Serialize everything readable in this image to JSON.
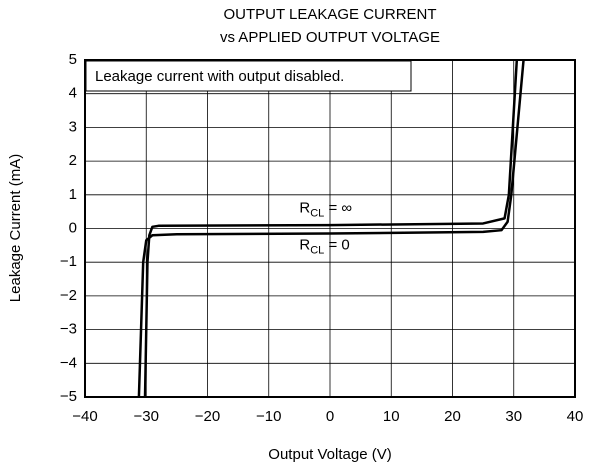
{
  "chart_data": {
    "type": "line",
    "title": "OUTPUT LEAKAGE CURRENT",
    "subtitle": "vs APPLIED OUTPUT VOLTAGE",
    "x_label": "Output Voltage (V)",
    "y_label": "Leakage Current (mA)",
    "annotation": "Leakage current with output disabled.",
    "xlim": [
      -40,
      40
    ],
    "ylim": [
      -5,
      5
    ],
    "xticks": [
      {
        "value": -40,
        "label": "−40"
      },
      {
        "value": -30,
        "label": "−30"
      },
      {
        "value": -20,
        "label": "−20"
      },
      {
        "value": -10,
        "label": "−10"
      },
      0,
      10,
      20,
      30,
      40
    ],
    "yticks": [
      {
        "value": -5,
        "label": "−5"
      },
      {
        "value": -4,
        "label": "−4"
      },
      {
        "value": -3,
        "label": "−3"
      },
      {
        "value": -2,
        "label": "−2"
      },
      {
        "value": -1,
        "label": "−1"
      },
      0,
      1,
      2,
      3,
      4,
      5
    ],
    "grid": true,
    "series": [
      {
        "name_parts": [
          "R",
          "CL",
          " = ∞"
        ],
        "color": "#000000",
        "x": [
          -30.2,
          -29.8,
          -29.5,
          -29,
          -28,
          0,
          25,
          28.5,
          29.2,
          30.5
        ],
        "values": [
          -5,
          -1,
          -0.2,
          0.05,
          0.08,
          0.1,
          0.15,
          0.3,
          1,
          5
        ]
      },
      {
        "name_parts": [
          "R",
          "CL",
          " = 0"
        ],
        "color": "#000000",
        "x": [
          -31.2,
          -30.5,
          -30,
          -29,
          -25,
          0,
          25,
          28,
          29,
          29.6,
          31.6
        ],
        "values": [
          -5,
          -1,
          -0.35,
          -0.2,
          -0.17,
          -0.15,
          -0.1,
          -0.05,
          0.2,
          1,
          5
        ]
      }
    ]
  }
}
